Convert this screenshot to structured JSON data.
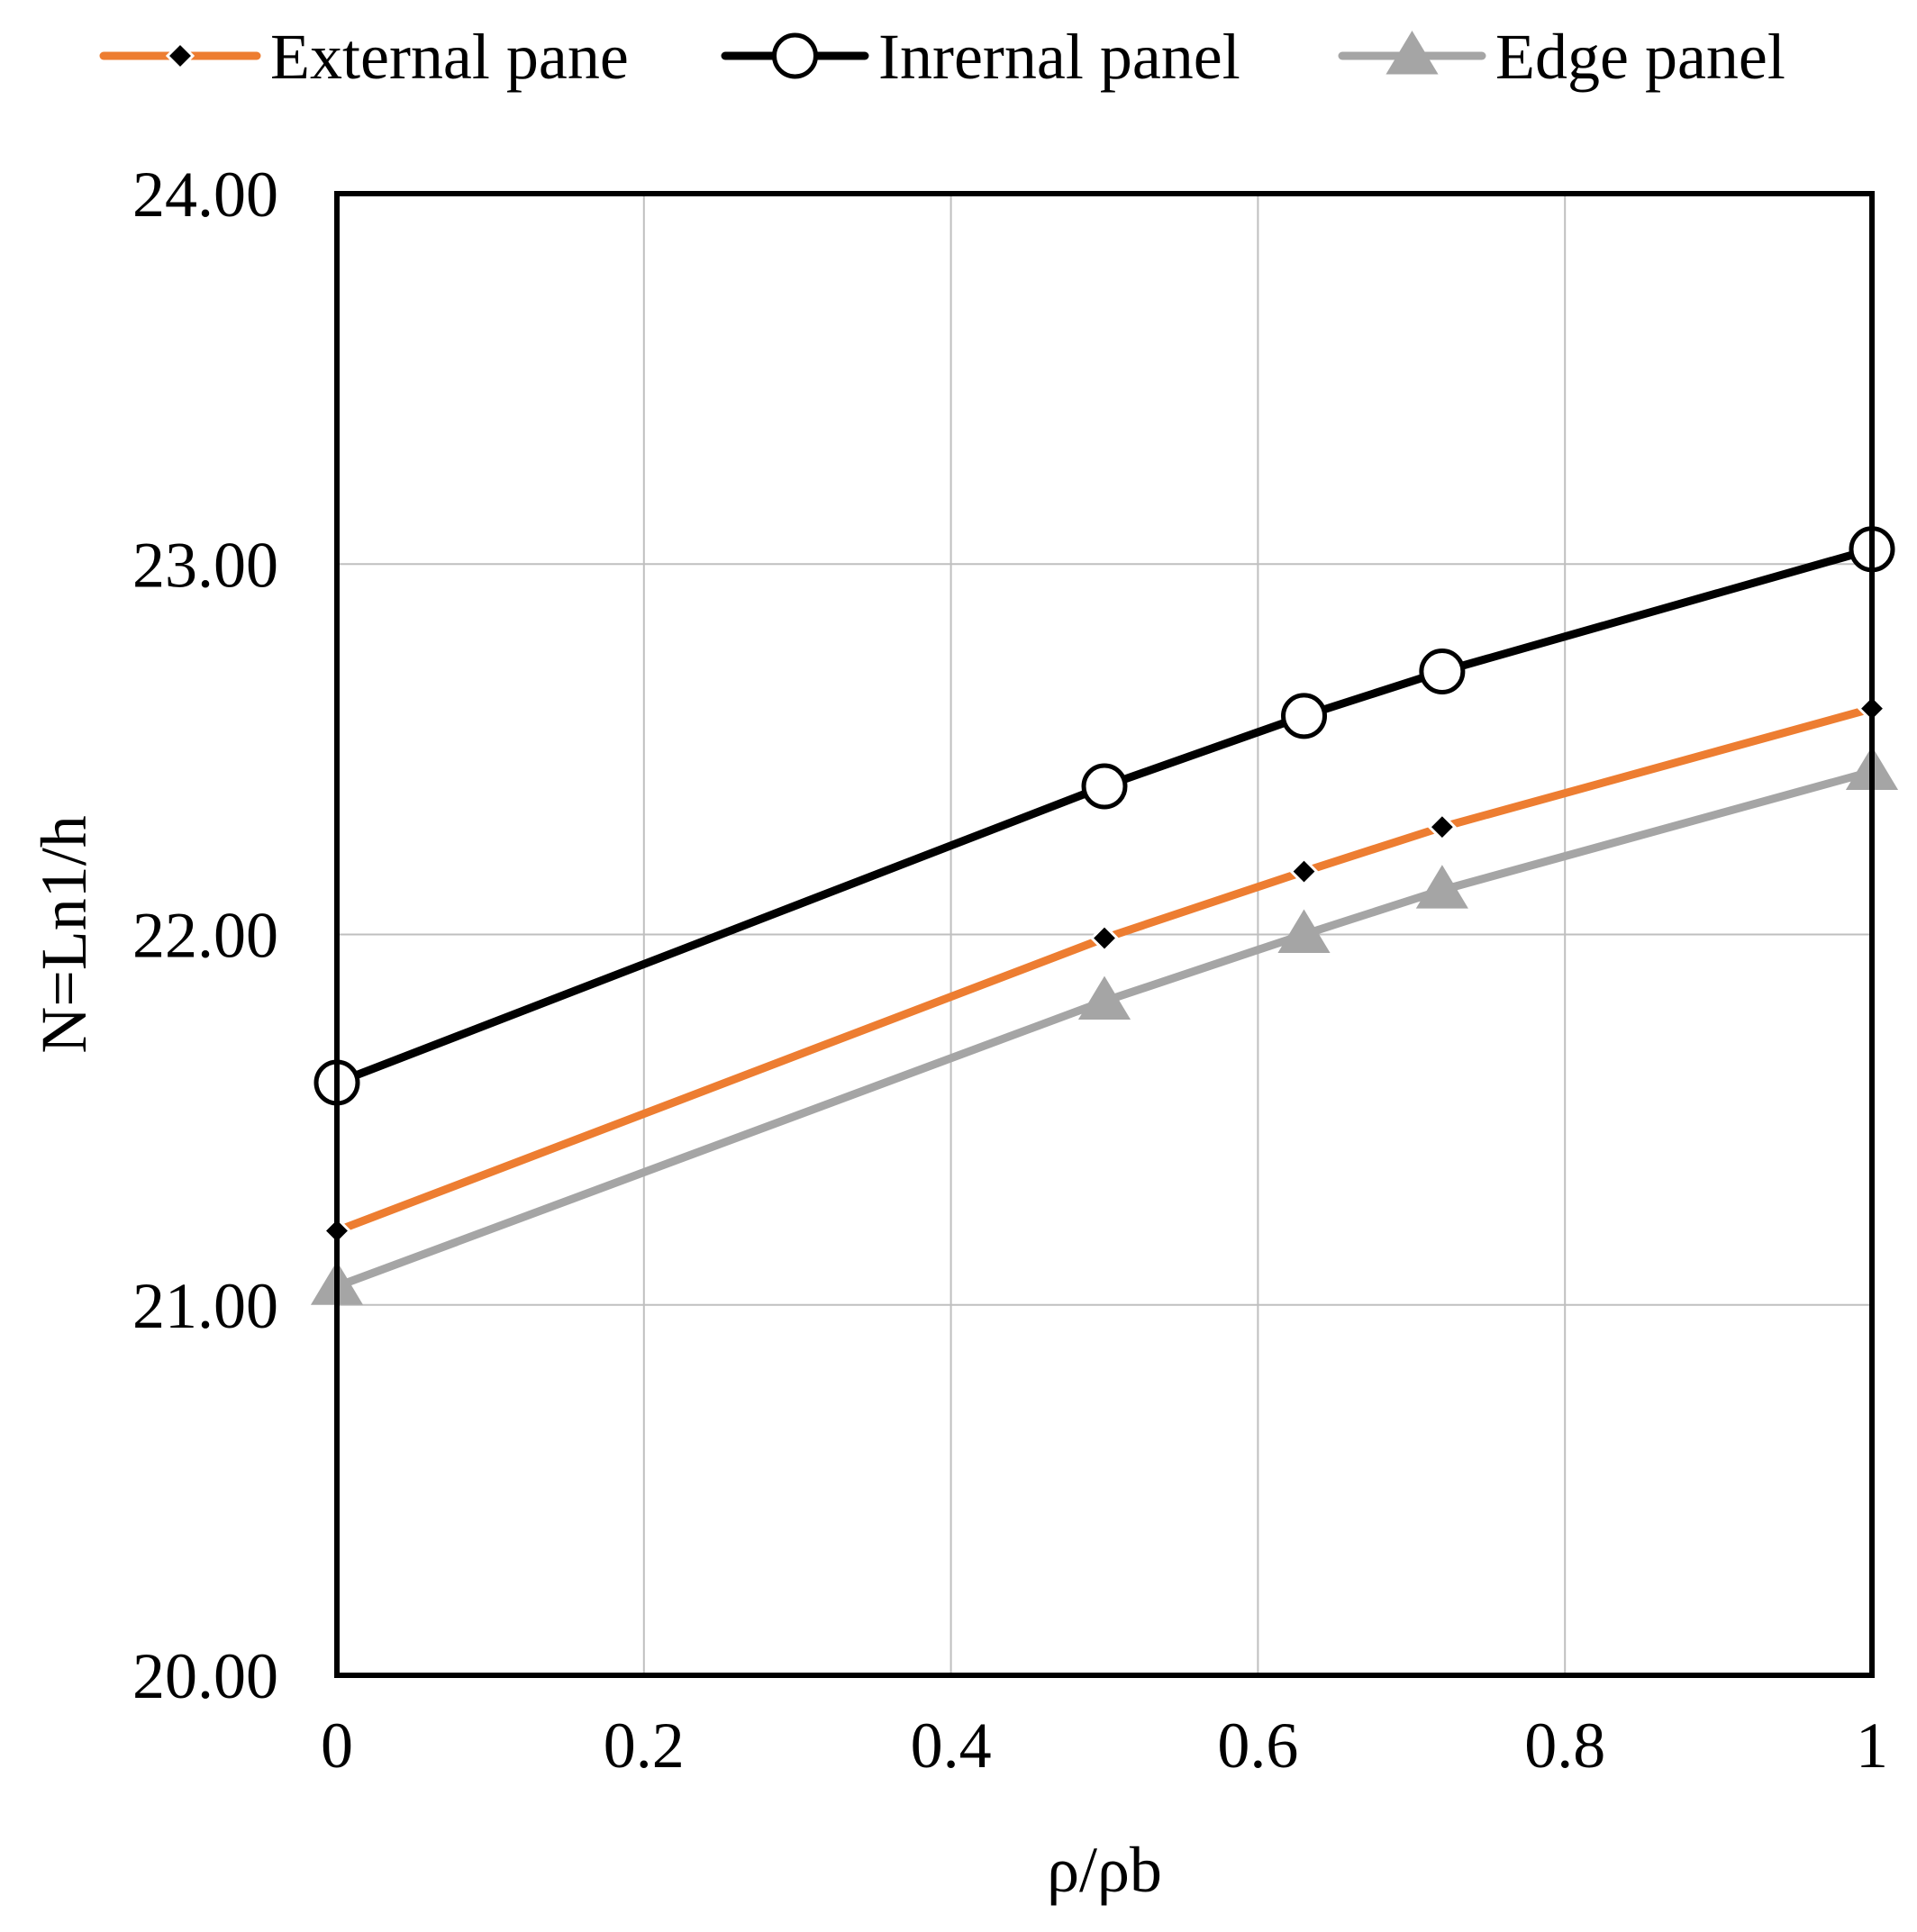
{
  "chart_data": {
    "type": "line",
    "title": "",
    "xlabel": "ρ/ρb",
    "ylabel": "N=Ln1/h",
    "xlim": [
      0,
      1
    ],
    "ylim": [
      20,
      24
    ],
    "grid": true,
    "legend_position": "top",
    "x_ticks": [
      "0",
      "0.2",
      "0.4",
      "0.6",
      "0.8",
      "1"
    ],
    "x_tick_values": [
      0,
      0.2,
      0.4,
      0.6,
      0.8,
      1
    ],
    "y_ticks": [
      "20.00",
      "21.00",
      "22.00",
      "23.00",
      "24.00"
    ],
    "y_tick_values": [
      20,
      21,
      22,
      23,
      24
    ],
    "x": [
      0,
      0.5,
      0.63,
      0.72,
      1
    ],
    "series": [
      {
        "name": "External pane",
        "values": [
          21.2,
          21.99,
          22.17,
          22.29,
          22.61
        ],
        "color": "#ED7D31",
        "marker": "diamond",
        "marker_color": "#000000"
      },
      {
        "name": "Inrernal panel",
        "values": [
          21.6,
          22.4,
          22.59,
          22.71,
          23.04
        ],
        "color": "#000000",
        "marker": "circle",
        "marker_color": "#ffffff"
      },
      {
        "name": "Edge panel",
        "values": [
          21.05,
          21.82,
          22.0,
          22.12,
          22.44
        ],
        "color": "#A5A5A5",
        "marker": "triangle",
        "marker_color": "#A5A5A5"
      }
    ]
  }
}
